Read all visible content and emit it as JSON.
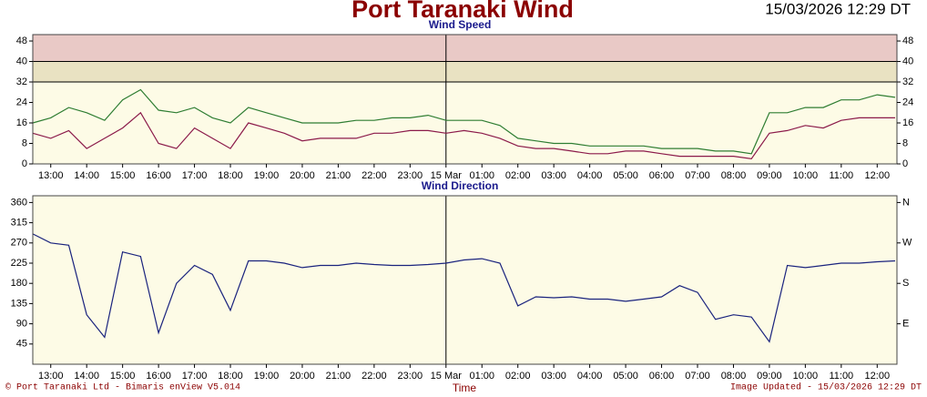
{
  "title": "Port Taranaki Wind",
  "timestamp": "15/03/2026 12:29 DT",
  "footer": {
    "left": "© Port Taranaki Ltd - Bimaris enView V5.014",
    "right": "Image Updated - 15/03/2026 12:29 DT"
  },
  "chart_data": [
    {
      "type": "line",
      "title": "Wind Speed",
      "x": [
        12.5,
        13,
        13.5,
        14,
        14.5,
        15,
        15.5,
        16,
        16.5,
        17,
        17.5,
        18,
        18.5,
        19,
        19.5,
        20,
        20.5,
        21,
        21.5,
        22,
        22.5,
        23,
        23.5,
        24,
        24.5,
        25,
        25.5,
        26,
        26.5,
        27,
        27.5,
        28,
        28.5,
        29,
        29.5,
        30,
        30.5,
        31,
        31.5,
        32,
        32.5,
        33,
        33.5,
        34,
        34.5,
        35,
        35.5,
        36,
        36.5
      ],
      "series": [
        {
          "color": "#2e7d32",
          "values": [
            16,
            18,
            22,
            20,
            17,
            25,
            29,
            21,
            20,
            22,
            18,
            16,
            22,
            20,
            18,
            16,
            16,
            16,
            17,
            17,
            18,
            18,
            19,
            17,
            17,
            17,
            15,
            10,
            9,
            8,
            8,
            7,
            7,
            7,
            7,
            6,
            6,
            6,
            5,
            5,
            4,
            20,
            20,
            22,
            22,
            25,
            25,
            27,
            26
          ]
        },
        {
          "color": "#8b1a4a",
          "values": [
            12,
            10,
            13,
            6,
            10,
            14,
            20,
            8,
            6,
            14,
            10,
            6,
            16,
            14,
            12,
            9,
            10,
            10,
            10,
            12,
            12,
            13,
            13,
            12,
            13,
            12,
            10,
            7,
            6,
            6,
            5,
            4,
            4,
            5,
            5,
            4,
            3,
            3,
            3,
            3,
            2,
            12,
            13,
            15,
            14,
            17,
            18,
            18,
            18
          ]
        }
      ],
      "xlim": [
        12.5,
        36.55
      ],
      "xticks": [
        {
          "value": 13,
          "label": "13:00"
        },
        {
          "value": 14,
          "label": "14:00"
        },
        {
          "value": 15,
          "label": "15:00"
        },
        {
          "value": 16,
          "label": "16:00"
        },
        {
          "value": 17,
          "label": "17:00"
        },
        {
          "value": 18,
          "label": "18:00"
        },
        {
          "value": 19,
          "label": "19:00"
        },
        {
          "value": 20,
          "label": "20:00"
        },
        {
          "value": 21,
          "label": "21:00"
        },
        {
          "value": 22,
          "label": "22:00"
        },
        {
          "value": 23,
          "label": "23:00"
        },
        {
          "value": 24,
          "label": "15 Mar"
        },
        {
          "value": 25,
          "label": "01:00"
        },
        {
          "value": 26,
          "label": "02:00"
        },
        {
          "value": 27,
          "label": "03:00"
        },
        {
          "value": 28,
          "label": "04:00"
        },
        {
          "value": 29,
          "label": "05:00"
        },
        {
          "value": 30,
          "label": "06:00"
        },
        {
          "value": 31,
          "label": "07:00"
        },
        {
          "value": 32,
          "label": "08:00"
        },
        {
          "value": 33,
          "label": "09:00"
        },
        {
          "value": 34,
          "label": "10:00"
        },
        {
          "value": 35,
          "label": "11:00"
        },
        {
          "value": 36,
          "label": "12:00"
        }
      ],
      "ylim": [
        0,
        50.5
      ],
      "yticks": [
        0,
        8,
        16,
        24,
        32,
        40,
        48
      ],
      "y2ticks": [
        0,
        8,
        16,
        24,
        32,
        40,
        48
      ],
      "bands": [
        {
          "from": 32,
          "color": "#e9e2c2"
        },
        {
          "from": 40,
          "color": "#e9c9c6"
        }
      ],
      "day_divider": 24
    },
    {
      "type": "line",
      "title": "Wind Direction",
      "xlabel": "Time",
      "x": [
        12.5,
        13,
        13.5,
        14,
        14.5,
        15,
        15.5,
        16,
        16.5,
        17,
        17.5,
        18,
        18.5,
        19,
        19.5,
        20,
        20.5,
        21,
        21.5,
        22,
        22.5,
        23,
        23.5,
        24,
        24.5,
        25,
        25.5,
        26,
        26.5,
        27,
        27.5,
        28,
        28.5,
        29,
        29.5,
        30,
        30.5,
        31,
        31.5,
        32,
        32.5,
        33,
        33.5,
        34,
        34.5,
        35,
        35.5,
        36,
        36.5
      ],
      "series": [
        {
          "color": "#1a237e",
          "values": [
            290,
            270,
            265,
            110,
            60,
            250,
            240,
            70,
            180,
            220,
            200,
            120,
            230,
            230,
            225,
            215,
            220,
            220,
            225,
            222,
            220,
            220,
            222,
            225,
            232,
            235,
            225,
            130,
            150,
            148,
            150,
            145,
            145,
            140,
            145,
            150,
            175,
            160,
            100,
            110,
            105,
            50,
            220,
            215,
            220,
            225,
            225,
            228,
            230
          ]
        }
      ],
      "xlim": [
        12.5,
        36.55
      ],
      "xticks": [
        {
          "value": 13,
          "label": "13:00"
        },
        {
          "value": 14,
          "label": "14:00"
        },
        {
          "value": 15,
          "label": "15:00"
        },
        {
          "value": 16,
          "label": "16:00"
        },
        {
          "value": 17,
          "label": "17:00"
        },
        {
          "value": 18,
          "label": "18:00"
        },
        {
          "value": 19,
          "label": "19:00"
        },
        {
          "value": 20,
          "label": "20:00"
        },
        {
          "value": 21,
          "label": "21:00"
        },
        {
          "value": 22,
          "label": "22:00"
        },
        {
          "value": 23,
          "label": "23:00"
        },
        {
          "value": 24,
          "label": "15 Mar"
        },
        {
          "value": 25,
          "label": "01:00"
        },
        {
          "value": 26,
          "label": "02:00"
        },
        {
          "value": 27,
          "label": "03:00"
        },
        {
          "value": 28,
          "label": "04:00"
        },
        {
          "value": 29,
          "label": "05:00"
        },
        {
          "value": 30,
          "label": "06:00"
        },
        {
          "value": 31,
          "label": "07:00"
        },
        {
          "value": 32,
          "label": "08:00"
        },
        {
          "value": 33,
          "label": "09:00"
        },
        {
          "value": 34,
          "label": "10:00"
        },
        {
          "value": 35,
          "label": "11:00"
        },
        {
          "value": 36,
          "label": "12:00"
        }
      ],
      "ylim": [
        0,
        375
      ],
      "yticks": [
        45,
        90,
        135,
        180,
        225,
        270,
        315,
        360
      ],
      "y2ticks": [
        {
          "value": 90,
          "label": "E"
        },
        {
          "value": 180,
          "label": "S"
        },
        {
          "value": 270,
          "label": "W"
        },
        {
          "value": 360,
          "label": "N"
        }
      ],
      "day_divider": 24
    }
  ]
}
